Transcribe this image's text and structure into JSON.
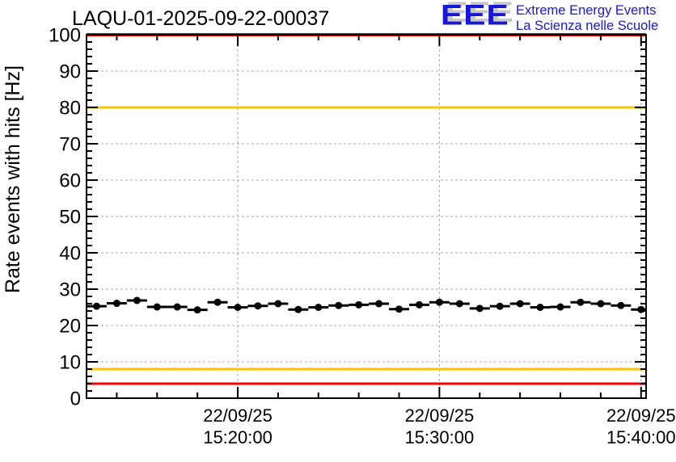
{
  "header": {
    "title": "LAQU-01-2025-09-22-00037",
    "logo": {
      "acronym": "EEE",
      "line1": "Extreme Energy Events",
      "line2": "La Scienza nelle Scuole",
      "color": "#1717d9",
      "shadow_color": "#c6c6c6"
    }
  },
  "chart_data": {
    "type": "scatter",
    "title": "LAQU-01-2025-09-22-00037",
    "xlabel": "",
    "ylabel": "Rate events with hits [Hz]",
    "ylim": [
      0,
      100
    ],
    "y_major_step": 10,
    "y_minor_step": 2,
    "grid": true,
    "grid_color": "#aaaaaa",
    "legend": "none",
    "x_axis": {
      "start": "15:12:30",
      "end": "15:40:15",
      "minor_step_sec": 120,
      "major_ticks": [
        {
          "date": "22/09/25",
          "time": "15:20:00"
        },
        {
          "date": "22/09/25",
          "time": "15:30:00"
        },
        {
          "date": "22/09/25",
          "time": "15:40:00"
        }
      ]
    },
    "threshold_lines": [
      {
        "y": 100,
        "color": "#ff0000",
        "width": 4
      },
      {
        "y": 80,
        "color": "#ffc400",
        "width": 3
      },
      {
        "y": 8,
        "color": "#ffc400",
        "width": 3
      },
      {
        "y": 4,
        "color": "#ff0000",
        "width": 3
      }
    ],
    "series": [
      {
        "name": "rate-events-with-hits",
        "marker": "filled-circle",
        "color": "#000000",
        "x_error_sec": 30,
        "points": [
          {
            "time": "15:13:00",
            "value": 25.3
          },
          {
            "time": "15:14:00",
            "value": 26.1
          },
          {
            "time": "15:15:00",
            "value": 26.9
          },
          {
            "time": "15:16:00",
            "value": 25.1
          },
          {
            "time": "15:17:00",
            "value": 25.1
          },
          {
            "time": "15:18:00",
            "value": 24.3
          },
          {
            "time": "15:19:00",
            "value": 26.4
          },
          {
            "time": "15:20:00",
            "value": 25.0
          },
          {
            "time": "15:21:00",
            "value": 25.4
          },
          {
            "time": "15:22:00",
            "value": 26.0
          },
          {
            "time": "15:23:00",
            "value": 24.4
          },
          {
            "time": "15:24:00",
            "value": 25.0
          },
          {
            "time": "15:25:00",
            "value": 25.5
          },
          {
            "time": "15:26:00",
            "value": 25.7
          },
          {
            "time": "15:27:00",
            "value": 26.0
          },
          {
            "time": "15:28:00",
            "value": 24.5
          },
          {
            "time": "15:29:00",
            "value": 25.7
          },
          {
            "time": "15:30:00",
            "value": 26.4
          },
          {
            "time": "15:31:00",
            "value": 26.0
          },
          {
            "time": "15:32:00",
            "value": 24.7
          },
          {
            "time": "15:33:00",
            "value": 25.3
          },
          {
            "time": "15:34:00",
            "value": 26.0
          },
          {
            "time": "15:35:00",
            "value": 25.0
          },
          {
            "time": "15:36:00",
            "value": 25.1
          },
          {
            "time": "15:37:00",
            "value": 26.4
          },
          {
            "time": "15:38:00",
            "value": 26.0
          },
          {
            "time": "15:39:00",
            "value": 25.5
          },
          {
            "time": "15:40:00",
            "value": 24.4
          }
        ]
      }
    ]
  }
}
